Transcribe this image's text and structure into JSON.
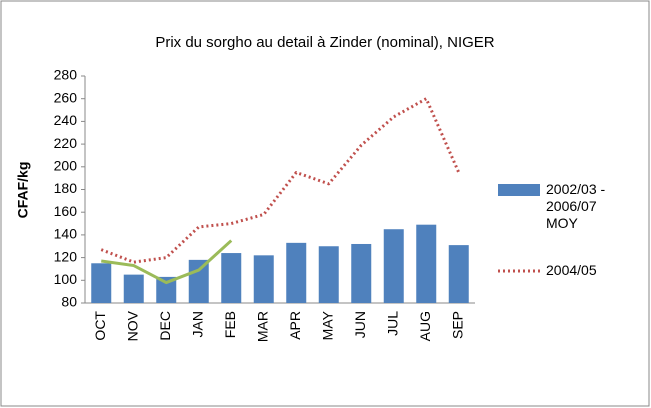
{
  "chart_data": {
    "type": "bar-line",
    "title": "Prix du sorgho au detail à Zinder (nominal), NIGER",
    "y_label": "CFAF/kg",
    "categories": [
      "OCT",
      "NOV",
      "DEC",
      "JAN",
      "FEB",
      "MAR",
      "APR",
      "MAY",
      "JUN",
      "JUL",
      "AUG",
      "SEP"
    ],
    "series": [
      {
        "name": "2002/03 - 2006/07 MOY",
        "color": "#4f81bd",
        "kind": "bar",
        "values": [
          115,
          105,
          103,
          118,
          124,
          122,
          133,
          130,
          132,
          145,
          149,
          131
        ]
      },
      {
        "name": "2004/05",
        "color": "#c0504d",
        "kind": "dotted-line",
        "values": [
          127,
          116,
          120,
          147,
          150,
          158,
          195,
          185,
          219,
          244,
          260,
          195
        ]
      },
      {
        "color": "#9bbb59",
        "kind": "line",
        "values": [
          117,
          113,
          98,
          109,
          135,
          null,
          null,
          null,
          null,
          null,
          null,
          null
        ]
      }
    ],
    "ylim": [
      80,
      280
    ],
    "yticks": [
      80,
      100,
      120,
      140,
      160,
      180,
      200,
      220,
      240,
      260,
      280
    ],
    "legend": "right"
  }
}
